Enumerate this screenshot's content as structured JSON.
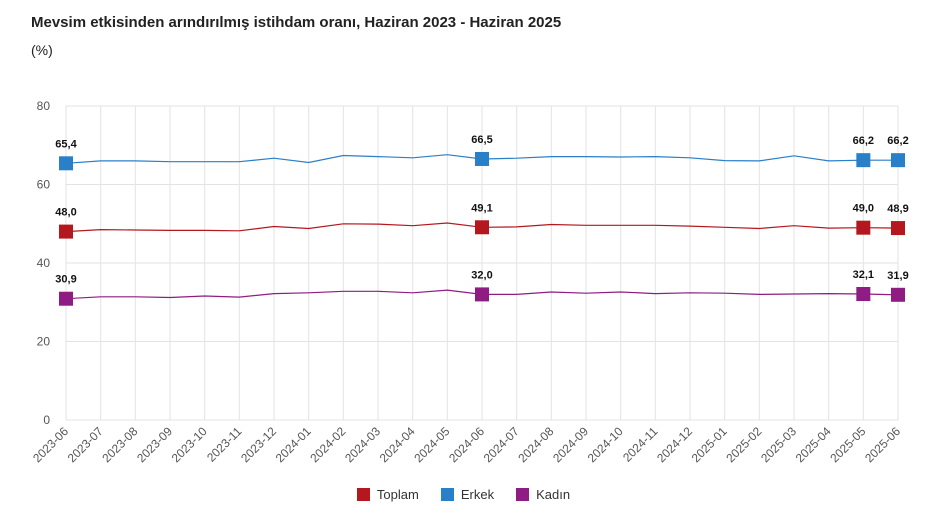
{
  "chart_data": {
    "type": "line",
    "title": "Mevsim etkisinden arındırılmış istihdam oranı, Haziran 2023 - Haziran 2025",
    "subtitle": "(%)",
    "categories": [
      "2023-06",
      "2023-07",
      "2023-08",
      "2023-09",
      "2023-10",
      "2023-11",
      "2023-12",
      "2024-01",
      "2024-02",
      "2024-03",
      "2024-04",
      "2024-05",
      "2024-06",
      "2024-07",
      "2024-08",
      "2024-09",
      "2024-10",
      "2024-11",
      "2024-12",
      "2025-01",
      "2025-02",
      "2025-03",
      "2025-04",
      "2025-05",
      "2025-06"
    ],
    "y_ticks": [
      0,
      20,
      40,
      60,
      80
    ],
    "ylim": [
      0,
      80
    ],
    "grid": true,
    "legend_position": "bottom",
    "series": [
      {
        "name": "Toplam",
        "color": "#b5171e",
        "values": [
          48.0,
          48.5,
          48.4,
          48.3,
          48.3,
          48.2,
          49.3,
          48.8,
          50.0,
          49.9,
          49.5,
          50.2,
          49.1,
          49.2,
          49.8,
          49.6,
          49.6,
          49.6,
          49.4,
          49.1,
          48.8,
          49.5,
          48.9,
          49.0,
          48.9
        ],
        "labeled_points": [
          {
            "index": 0,
            "label": "48,0"
          },
          {
            "index": 12,
            "label": "49,1"
          },
          {
            "index": 23,
            "label": "49,0"
          },
          {
            "index": 24,
            "label": "48,9"
          }
        ]
      },
      {
        "name": "Erkek",
        "color": "#2a7fc9",
        "values": [
          65.4,
          66.0,
          66.0,
          65.8,
          65.8,
          65.8,
          66.7,
          65.6,
          67.4,
          67.1,
          66.8,
          67.6,
          66.5,
          66.7,
          67.1,
          67.1,
          67.0,
          67.1,
          66.8,
          66.1,
          66.0,
          67.3,
          66.0,
          66.2,
          66.2
        ],
        "labeled_points": [
          {
            "index": 0,
            "label": "65,4"
          },
          {
            "index": 12,
            "label": "66,5"
          },
          {
            "index": 23,
            "label": "66,2"
          },
          {
            "index": 24,
            "label": "66,2"
          }
        ]
      },
      {
        "name": "Kadın",
        "color": "#8e1c82",
        "values": [
          30.9,
          31.4,
          31.4,
          31.2,
          31.6,
          31.3,
          32.2,
          32.4,
          32.8,
          32.8,
          32.4,
          33.1,
          32.0,
          32.0,
          32.6,
          32.3,
          32.6,
          32.2,
          32.4,
          32.3,
          32.0,
          32.1,
          32.2,
          32.1,
          31.9
        ],
        "labeled_points": [
          {
            "index": 0,
            "label": "30,9"
          },
          {
            "index": 12,
            "label": "32,0"
          },
          {
            "index": 23,
            "label": "32,1"
          },
          {
            "index": 24,
            "label": "31,9"
          }
        ]
      }
    ]
  }
}
